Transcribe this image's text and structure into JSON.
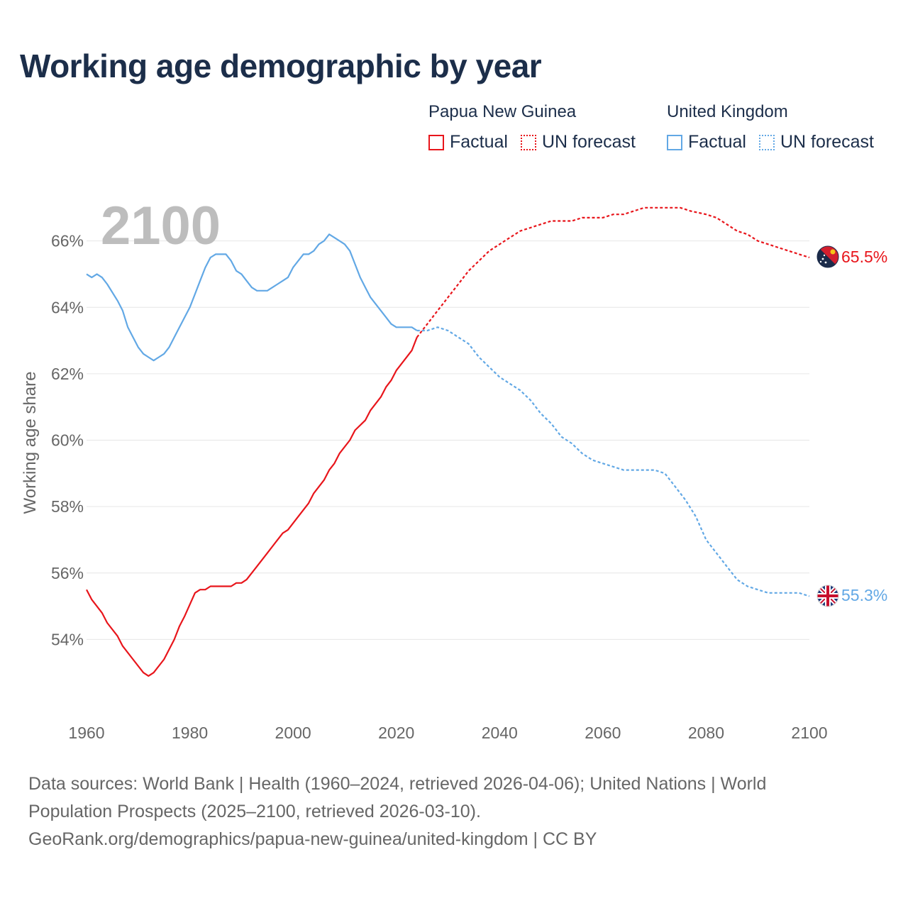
{
  "title": "Working age demographic by year",
  "year_overlay": "2100",
  "legend": [
    {
      "name": "Papua New Guinea",
      "factual_label": "Factual",
      "forecast_label": "UN forecast",
      "color": "#e8151b"
    },
    {
      "name": "United Kingdom",
      "factual_label": "Factual",
      "forecast_label": "UN forecast",
      "color": "#62a8e5"
    }
  ],
  "sources": {
    "line1": "Data sources: World Bank | Health (1960–2024, retrieved 2026-04-06); United Nations | World",
    "line2": "Population Prospects (2025–2100, retrieved 2026-03-10).",
    "line3": "GeoRank.org/demographics/papua-new-guinea/united-kingdom | CC BY"
  },
  "chart_data": {
    "type": "line",
    "ylabel": "Working age share",
    "xlabel": "",
    "xlim": [
      1960,
      2100
    ],
    "ylim": [
      52,
      68
    ],
    "x_ticks": [
      1960,
      1980,
      2000,
      2020,
      2040,
      2060,
      2080,
      2100
    ],
    "x_tick_labels": [
      "1960",
      "1980",
      "2000",
      "2020",
      "2040",
      "2060",
      "2080",
      "2100"
    ],
    "y_ticks": [
      54,
      56,
      58,
      60,
      62,
      64,
      66
    ],
    "y_tick_labels": [
      "54%",
      "56%",
      "58%",
      "60%",
      "62%",
      "64%",
      "66%"
    ],
    "factual_end_year": 2024,
    "series": [
      {
        "name": "Papua New Guinea",
        "color": "#e8151b",
        "end_label": "65.5%",
        "flag": "papua-new-guinea-flag",
        "points": [
          [
            1960,
            55.5
          ],
          [
            1961,
            55.2
          ],
          [
            1963,
            54.8
          ],
          [
            1964,
            54.5
          ],
          [
            1966,
            54.1
          ],
          [
            1967,
            53.8
          ],
          [
            1969,
            53.4
          ],
          [
            1971,
            53.0
          ],
          [
            1972,
            52.9
          ],
          [
            1973,
            53.0
          ],
          [
            1975,
            53.4
          ],
          [
            1977,
            54.0
          ],
          [
            1978,
            54.4
          ],
          [
            1979,
            54.7
          ],
          [
            1981,
            55.4
          ],
          [
            1982,
            55.5
          ],
          [
            1983,
            55.5
          ],
          [
            1984,
            55.6
          ],
          [
            1988,
            55.6
          ],
          [
            1989,
            55.7
          ],
          [
            1990,
            55.7
          ],
          [
            1991,
            55.8
          ],
          [
            1993,
            56.2
          ],
          [
            1995,
            56.6
          ],
          [
            1997,
            57.0
          ],
          [
            1998,
            57.2
          ],
          [
            1999,
            57.3
          ],
          [
            2001,
            57.7
          ],
          [
            2003,
            58.1
          ],
          [
            2004,
            58.4
          ],
          [
            2006,
            58.8
          ],
          [
            2007,
            59.1
          ],
          [
            2008,
            59.3
          ],
          [
            2009,
            59.6
          ],
          [
            2011,
            60.0
          ],
          [
            2012,
            60.3
          ],
          [
            2014,
            60.6
          ],
          [
            2015,
            60.9
          ],
          [
            2017,
            61.3
          ],
          [
            2018,
            61.6
          ],
          [
            2019,
            61.8
          ],
          [
            2020,
            62.1
          ],
          [
            2021,
            62.3
          ],
          [
            2023,
            62.7
          ],
          [
            2024,
            63.1
          ],
          [
            2026,
            63.5
          ],
          [
            2028,
            63.9
          ],
          [
            2030,
            64.3
          ],
          [
            2032,
            64.7
          ],
          [
            2034,
            65.1
          ],
          [
            2036,
            65.4
          ],
          [
            2038,
            65.7
          ],
          [
            2040,
            65.9
          ],
          [
            2042,
            66.1
          ],
          [
            2044,
            66.3
          ],
          [
            2046,
            66.4
          ],
          [
            2048,
            66.5
          ],
          [
            2050,
            66.6
          ],
          [
            2054,
            66.6
          ],
          [
            2056,
            66.7
          ],
          [
            2060,
            66.7
          ],
          [
            2062,
            66.8
          ],
          [
            2064,
            66.8
          ],
          [
            2066,
            66.9
          ],
          [
            2068,
            67.0
          ],
          [
            2075,
            67.0
          ],
          [
            2077,
            66.9
          ],
          [
            2080,
            66.8
          ],
          [
            2082,
            66.7
          ],
          [
            2084,
            66.5
          ],
          [
            2086,
            66.3
          ],
          [
            2088,
            66.2
          ],
          [
            2090,
            66.0
          ],
          [
            2092,
            65.9
          ],
          [
            2094,
            65.8
          ],
          [
            2096,
            65.7
          ],
          [
            2098,
            65.6
          ],
          [
            2100,
            65.5
          ]
        ]
      },
      {
        "name": "United Kingdom",
        "color": "#62a8e5",
        "end_label": "55.3%",
        "flag": "united-kingdom-flag",
        "points": [
          [
            1960,
            65.0
          ],
          [
            1961,
            64.9
          ],
          [
            1962,
            65.0
          ],
          [
            1963,
            64.9
          ],
          [
            1964,
            64.7
          ],
          [
            1966,
            64.2
          ],
          [
            1967,
            63.9
          ],
          [
            1968,
            63.4
          ],
          [
            1969,
            63.1
          ],
          [
            1970,
            62.8
          ],
          [
            1971,
            62.6
          ],
          [
            1972,
            62.5
          ],
          [
            1973,
            62.4
          ],
          [
            1974,
            62.5
          ],
          [
            1975,
            62.6
          ],
          [
            1976,
            62.8
          ],
          [
            1977,
            63.1
          ],
          [
            1978,
            63.4
          ],
          [
            1979,
            63.7
          ],
          [
            1980,
            64.0
          ],
          [
            1981,
            64.4
          ],
          [
            1982,
            64.8
          ],
          [
            1983,
            65.2
          ],
          [
            1984,
            65.5
          ],
          [
            1985,
            65.6
          ],
          [
            1987,
            65.6
          ],
          [
            1988,
            65.4
          ],
          [
            1989,
            65.1
          ],
          [
            1990,
            65.0
          ],
          [
            1991,
            64.8
          ],
          [
            1992,
            64.6
          ],
          [
            1993,
            64.5
          ],
          [
            1995,
            64.5
          ],
          [
            1996,
            64.6
          ],
          [
            1997,
            64.7
          ],
          [
            1998,
            64.8
          ],
          [
            1999,
            64.9
          ],
          [
            2000,
            65.2
          ],
          [
            2001,
            65.4
          ],
          [
            2002,
            65.6
          ],
          [
            2003,
            65.6
          ],
          [
            2004,
            65.7
          ],
          [
            2005,
            65.9
          ],
          [
            2006,
            66.0
          ],
          [
            2007,
            66.2
          ],
          [
            2008,
            66.1
          ],
          [
            2009,
            66.0
          ],
          [
            2010,
            65.9
          ],
          [
            2011,
            65.7
          ],
          [
            2012,
            65.3
          ],
          [
            2013,
            64.9
          ],
          [
            2014,
            64.6
          ],
          [
            2015,
            64.3
          ],
          [
            2016,
            64.1
          ],
          [
            2017,
            63.9
          ],
          [
            2018,
            63.7
          ],
          [
            2019,
            63.5
          ],
          [
            2020,
            63.4
          ],
          [
            2023,
            63.4
          ],
          [
            2024,
            63.3
          ],
          [
            2026,
            63.3
          ],
          [
            2028,
            63.4
          ],
          [
            2030,
            63.3
          ],
          [
            2032,
            63.1
          ],
          [
            2034,
            62.9
          ],
          [
            2036,
            62.5
          ],
          [
            2038,
            62.2
          ],
          [
            2040,
            61.9
          ],
          [
            2042,
            61.7
          ],
          [
            2044,
            61.5
          ],
          [
            2046,
            61.2
          ],
          [
            2048,
            60.8
          ],
          [
            2050,
            60.5
          ],
          [
            2052,
            60.1
          ],
          [
            2054,
            59.9
          ],
          [
            2056,
            59.6
          ],
          [
            2058,
            59.4
          ],
          [
            2060,
            59.3
          ],
          [
            2062,
            59.2
          ],
          [
            2064,
            59.1
          ],
          [
            2070,
            59.1
          ],
          [
            2072,
            59.0
          ],
          [
            2074,
            58.6
          ],
          [
            2076,
            58.2
          ],
          [
            2078,
            57.7
          ],
          [
            2080,
            57.0
          ],
          [
            2082,
            56.6
          ],
          [
            2084,
            56.2
          ],
          [
            2086,
            55.8
          ],
          [
            2088,
            55.6
          ],
          [
            2090,
            55.5
          ],
          [
            2092,
            55.4
          ],
          [
            2098,
            55.4
          ],
          [
            2100,
            55.3
          ]
        ]
      }
    ]
  }
}
